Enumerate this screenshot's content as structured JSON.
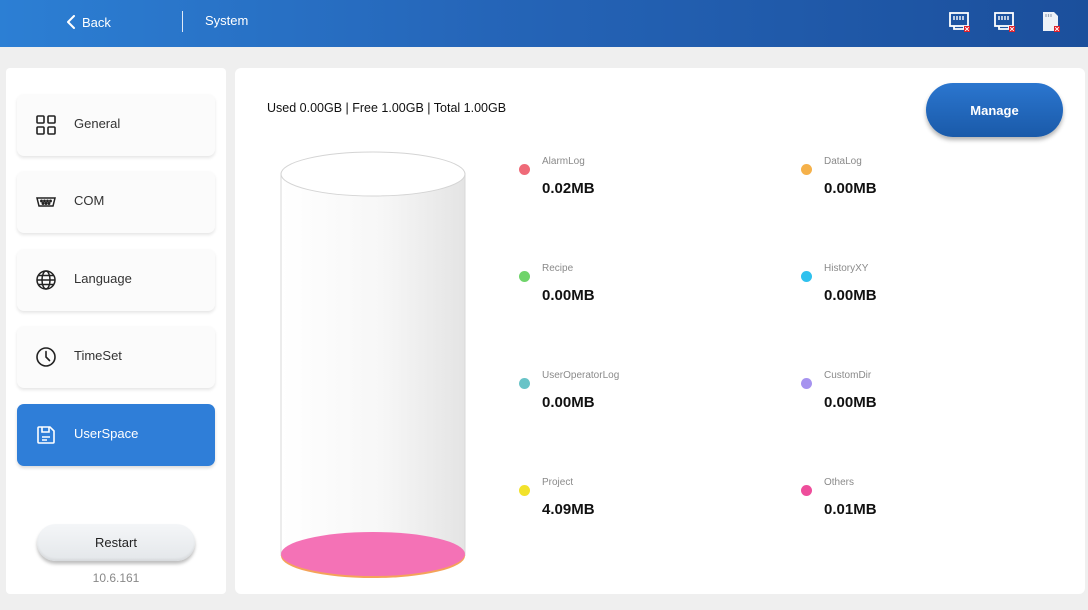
{
  "header": {
    "back_label": "Back",
    "title": "System",
    "status_icons": [
      "network-port-1-disconnected-icon",
      "network-port-2-disconnected-icon",
      "sd-card-missing-icon"
    ]
  },
  "sidebar": {
    "items": [
      {
        "label": "General",
        "icon": "grid-icon",
        "active": false
      },
      {
        "label": "COM",
        "icon": "serial-port-icon",
        "active": false
      },
      {
        "label": "Language",
        "icon": "globe-icon",
        "active": false
      },
      {
        "label": "TimeSet",
        "icon": "clock-icon",
        "active": false
      },
      {
        "label": "UserSpace",
        "icon": "storage-icon",
        "active": true
      }
    ],
    "restart_label": "Restart",
    "version": "10.6.161"
  },
  "main": {
    "summary": "Used 0.00GB | Free 1.00GB | Total 1.00GB",
    "manage_label": "Manage",
    "usage_fraction": 0.0,
    "stats": [
      {
        "name": "AlarmLog",
        "value": "0.02MB",
        "color": "#ef6a78"
      },
      {
        "name": "DataLog",
        "value": "0.00MB",
        "color": "#f5b14a"
      },
      {
        "name": "Recipe",
        "value": "0.00MB",
        "color": "#6fd46a"
      },
      {
        "name": "HistoryXY",
        "value": "0.00MB",
        "color": "#2fc1ee"
      },
      {
        "name": "UserOperatorLog",
        "value": "0.00MB",
        "color": "#68c3c7"
      },
      {
        "name": "CustomDir",
        "value": "0.00MB",
        "color": "#a693ef"
      },
      {
        "name": "Project",
        "value": "4.09MB",
        "color": "#f2e22b"
      },
      {
        "name": "Others",
        "value": "0.01MB",
        "color": "#ee4d9b"
      }
    ]
  },
  "colors": {
    "header_start": "#2c7fd4",
    "header_end": "#1b4f9c",
    "active_nav": "#2f7ed8",
    "manage_button": "#1f65b8",
    "cylinder_fill": "#f472b6"
  }
}
